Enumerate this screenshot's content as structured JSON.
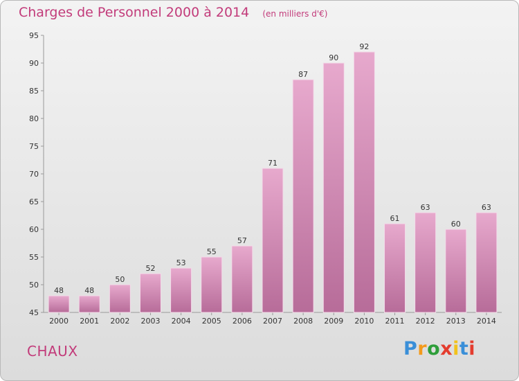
{
  "header": {
    "title": "Charges de Personnel 2000 à 2014",
    "unit": "(en milliers d'€)"
  },
  "footer": {
    "commune": "CHAUX",
    "logo": [
      "P",
      "r",
      "o",
      "x",
      "i",
      "t",
      "i"
    ]
  },
  "colors": {
    "accent": "#c23b7a",
    "bar_top": "#e7a9cd",
    "bar_bottom": "#b76c99",
    "logo": [
      "#3a8fd8",
      "#f39a1c",
      "#2e9e3a",
      "#e43c2e",
      "#f2c21c",
      "#3a8fd8",
      "#e43c2e"
    ]
  },
  "chart_data": {
    "type": "bar",
    "title": "Charges de Personnel 2000 à 2014",
    "subtitle": "(en milliers d'€)",
    "categories": [
      "2000",
      "2001",
      "2002",
      "2003",
      "2004",
      "2005",
      "2006",
      "2007",
      "2008",
      "2009",
      "2010",
      "2011",
      "2012",
      "2013",
      "2014"
    ],
    "values": [
      48,
      48,
      50,
      52,
      53,
      55,
      57,
      71,
      87,
      90,
      92,
      61,
      63,
      60,
      63
    ],
    "ylim": [
      45,
      95
    ],
    "yticks": [
      45,
      50,
      55,
      60,
      65,
      70,
      75,
      80,
      85,
      90,
      95
    ],
    "grid": false,
    "xlabel": "",
    "ylabel": ""
  }
}
